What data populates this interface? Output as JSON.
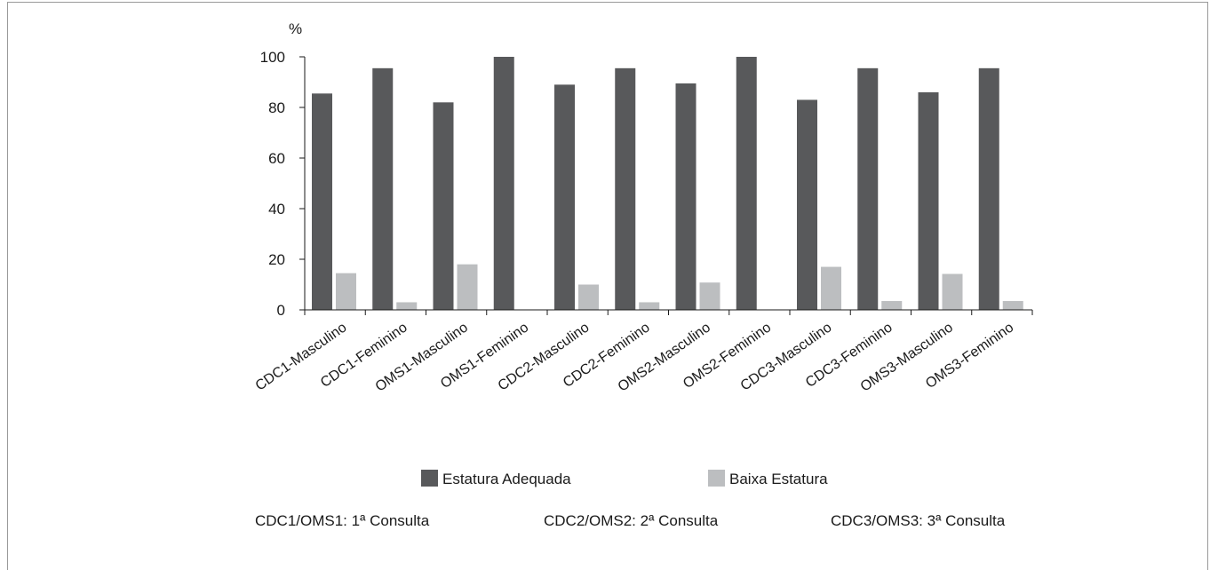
{
  "chart_data": {
    "type": "bar",
    "title": "",
    "xlabel": "",
    "ylabel": "%",
    "ylim": [
      0,
      100
    ],
    "yticks": [
      0,
      20,
      40,
      60,
      80,
      100
    ],
    "grid": false,
    "legend_position": "bottom",
    "categories": [
      "CDC1-Masculino",
      "CDC1-Feminino",
      "OMS1-Masculino",
      "OMS1-Feminino",
      "CDC2-Masculino",
      "CDC2-Feminino",
      "OMS2-Masculino",
      "OMS2-Feminino",
      "CDC3-Masculino",
      "CDC3-Feminino",
      "OMS3-Masculino",
      "OMS3-Feminino"
    ],
    "series": [
      {
        "name": "Estatura Adequada",
        "color": "#58595b",
        "values": [
          85.5,
          95.5,
          82,
          100,
          89,
          95.5,
          89.5,
          100,
          83,
          95.5,
          86,
          95.5
        ]
      },
      {
        "name": "Baixa Estatura",
        "color": "#bcbec0",
        "values": [
          14.5,
          3,
          18,
          0,
          10,
          3,
          10.8,
          0,
          17,
          3.5,
          14.2,
          3.5
        ]
      }
    ],
    "notes": [
      "CDC1/OMS1: 1ª Consulta",
      "CDC2/OMS2: 2ª Consulta",
      "CDC3/OMS3: 3ª Consulta"
    ]
  }
}
